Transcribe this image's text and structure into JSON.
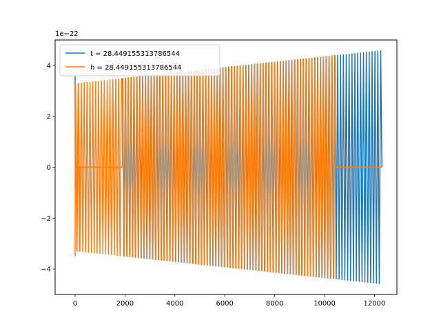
{
  "chart_data": {
    "type": "line",
    "title": "",
    "xlabel": "",
    "ylabel": "",
    "y_offset_text": "1e−22",
    "xlim": [
      -800,
      12900
    ],
    "ylim": [
      -5.0,
      5.0
    ],
    "xticks": [
      0,
      2000,
      4000,
      6000,
      8000,
      10000,
      12000
    ],
    "xtick_labels": [
      "0",
      "2000",
      "4000",
      "6000",
      "8000",
      "10000",
      "12000"
    ],
    "yticks": [
      -4,
      -2,
      0,
      2,
      4
    ],
    "ytick_labels": [
      "−4",
      "−2",
      "0",
      "2",
      "4"
    ],
    "grid": false,
    "legend_position": "top-left",
    "series": [
      {
        "name": "t = 28.449155313786544",
        "color": "#1f77b4",
        "x_start": 0,
        "x_end": 12300,
        "amplitude_start": 3.3,
        "amplitude_end": 4.6,
        "quiet_until": 1900,
        "spike_at_start": 3.6
      },
      {
        "name": "h = 28.449155313786544",
        "color": "#ff7f0e",
        "x_start": 0,
        "x_end": 12300,
        "amplitude_start": 3.3,
        "amplitude_end": 4.6,
        "active_until": 10450,
        "quiet_segment": [
          200,
          1900
        ],
        "spike_at_start": -3.5
      }
    ]
  }
}
